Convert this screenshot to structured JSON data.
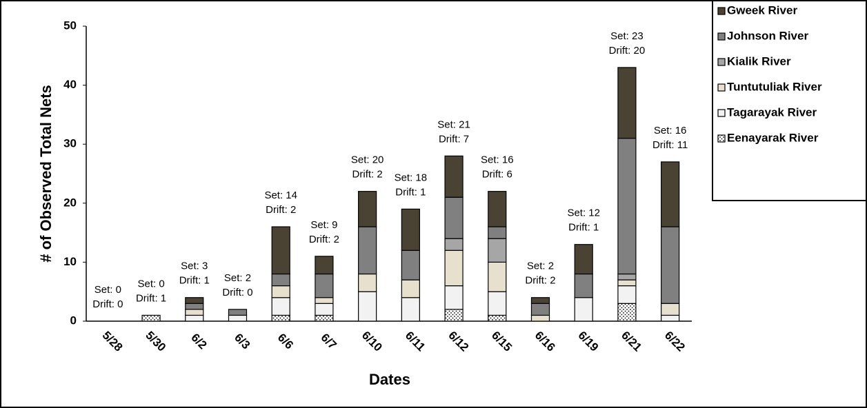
{
  "chart_data": {
    "type": "stacked_bar",
    "x_label": "Dates",
    "y_label": "# of Observed Total Nets",
    "categories": [
      "5/28",
      "5/30",
      "6/2",
      "6/3",
      "6/6",
      "6/7",
      "6/10",
      "6/11",
      "6/12",
      "6/15",
      "6/16",
      "6/19",
      "6/21",
      "6/22"
    ],
    "series": [
      {
        "name": "Eenayarak River",
        "color": "#ffffff",
        "pattern": "dots",
        "values": [
          0,
          1,
          0,
          0,
          1,
          1,
          0,
          0,
          2,
          1,
          0,
          0,
          3,
          0
        ]
      },
      {
        "name": "Tagarayak River",
        "color": "#f2f2f2",
        "values": [
          0,
          0,
          1,
          1,
          3,
          2,
          5,
          4,
          4,
          4,
          0,
          4,
          3,
          1
        ]
      },
      {
        "name": "Tuntutuliak River",
        "color": "#e6e0cc",
        "values": [
          0,
          0,
          1,
          0,
          2,
          1,
          3,
          3,
          6,
          5,
          1,
          0,
          1,
          2
        ]
      },
      {
        "name": "Kialik River",
        "color": "#a6a6a6",
        "values": [
          0,
          0,
          0,
          0,
          0,
          0,
          0,
          0,
          2,
          4,
          0,
          0,
          1,
          0
        ]
      },
      {
        "name": "Johnson River",
        "color": "#808080",
        "values": [
          0,
          0,
          1,
          1,
          2,
          4,
          8,
          5,
          7,
          2,
          2,
          4,
          23,
          13
        ]
      },
      {
        "name": "Gweek River",
        "color": "#4a4232",
        "values": [
          0,
          0,
          1,
          0,
          8,
          3,
          6,
          7,
          7,
          6,
          1,
          5,
          12,
          11
        ]
      }
    ],
    "set_labels": [
      "Set: 0",
      "Set: 0",
      "Set: 3",
      "Set: 2",
      "Set: 14",
      "Set: 9",
      "Set: 20",
      "Set: 18",
      "Set: 21",
      "Set: 16",
      "Set: 2",
      "Set: 12",
      "Set: 23",
      "Set: 16"
    ],
    "drift_labels": [
      "Drift: 0",
      "Drift: 1",
      "Drift: 1",
      "Drift: 0",
      "Drift: 2",
      "Drift: 2",
      "Drift: 2",
      "Drift: 1",
      "Drift: 7",
      "Drift: 6",
      "Drift: 2",
      "Drift: 1",
      "Drift: 20",
      "Drift: 11"
    ],
    "ylim": [
      0,
      50
    ],
    "yticks": [
      0,
      10,
      20,
      30,
      40,
      50
    ],
    "grid": false,
    "legend": "right"
  }
}
